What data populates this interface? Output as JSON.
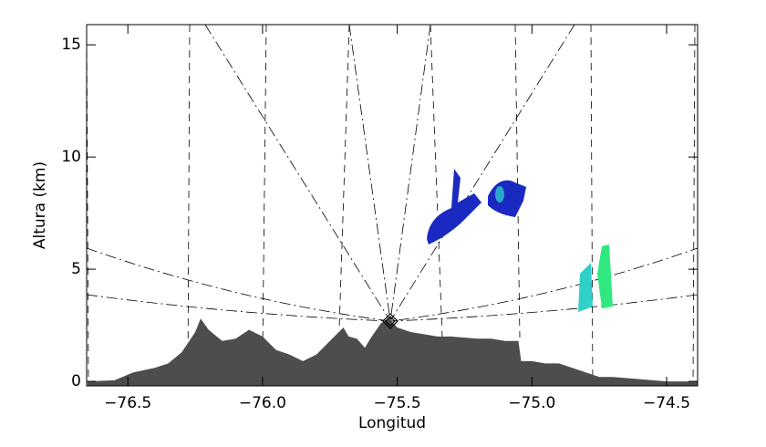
{
  "chart_data": {
    "type": "area",
    "xlabel": "Longitud",
    "ylabel": "Altura (km)",
    "color": "#4d4d4d",
    "x": [
      -76.65,
      -76.55,
      -76.48,
      -76.4,
      -76.35,
      -76.3,
      -76.25,
      -76.23,
      -76.2,
      -76.15,
      -76.1,
      -76.05,
      -76.0,
      -75.95,
      -75.9,
      -75.85,
      -75.8,
      -75.75,
      -75.7,
      -75.68,
      -75.65,
      -75.62,
      -75.6,
      -75.56,
      -75.53,
      -75.5,
      -75.45,
      -75.35,
      -75.3,
      -75.2,
      -75.15,
      -75.1,
      -75.05,
      -75.04,
      -75.0,
      -74.95,
      -74.9,
      -74.85,
      -74.8,
      -74.75,
      -74.7,
      -74.6,
      -74.5,
      -74.385
    ],
    "y": [
      0,
      0.05,
      0.4,
      0.6,
      0.8,
      1.3,
      2.2,
      2.8,
      2.3,
      1.8,
      1.9,
      2.3,
      2.0,
      1.4,
      1.2,
      0.9,
      1.2,
      1.8,
      2.4,
      2.0,
      1.9,
      1.5,
      1.9,
      2.6,
      2.8,
      2.4,
      2.2,
      2.0,
      2.0,
      1.9,
      1.9,
      1.8,
      1.8,
      0.9,
      0.9,
      0.8,
      0.8,
      0.6,
      0.4,
      0.2,
      0.2,
      0.1,
      0.0,
      0.0
    ],
    "xlim": [
      -76.653,
      -74.385
    ],
    "ylim": [
      -0.2,
      15.9
    ],
    "xticks": [
      {
        "value": -76.5,
        "label": "−76.5"
      },
      {
        "value": -76.0,
        "label": "−76.0"
      },
      {
        "value": -75.5,
        "label": "−75.5"
      },
      {
        "value": -75.0,
        "label": "−75.0"
      },
      {
        "value": -74.5,
        "label": "−74.5"
      }
    ],
    "yticks": [
      0,
      5,
      10,
      15
    ]
  }
}
